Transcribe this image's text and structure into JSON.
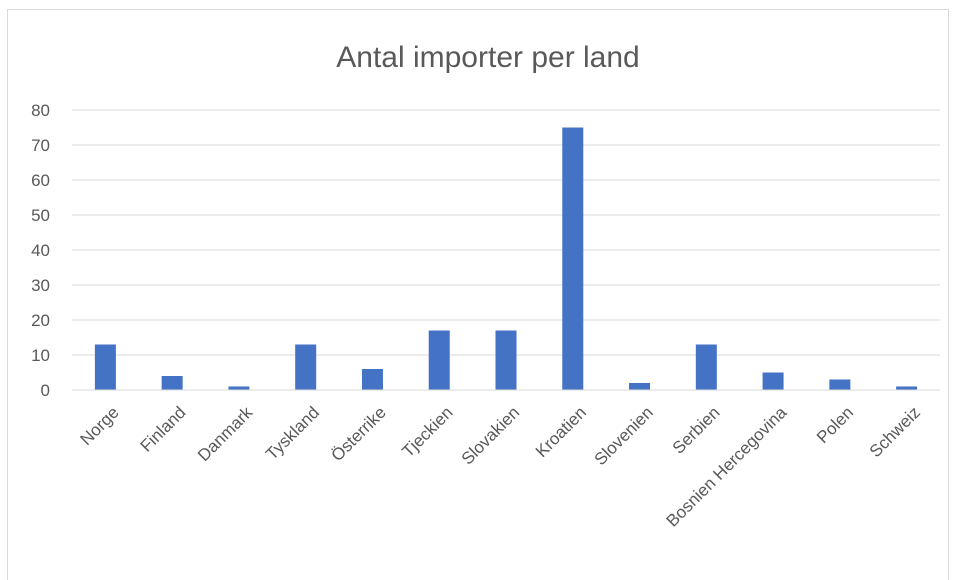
{
  "chart_data": {
    "type": "bar",
    "title": "Antal importer per land",
    "xlabel": "",
    "ylabel": "",
    "categories": [
      "Norge",
      "Finland",
      "Danmark",
      "Tyskland",
      "Österrike",
      "Tjeckien",
      "Slovakien",
      "Kroatien",
      "Slovenien",
      "Serbien",
      "Bosnien Hercegovina",
      "Polen",
      "Schweiz"
    ],
    "values": [
      13,
      4,
      1,
      13,
      6,
      17,
      17,
      75,
      2,
      13,
      5,
      3,
      1
    ],
    "ylim": [
      0,
      80
    ],
    "yticks": [
      "0",
      "10",
      "20",
      "30",
      "40",
      "50",
      "60",
      "70",
      "80"
    ],
    "grid": true,
    "legend": "none",
    "colors": {
      "bar": "#4472C4",
      "grid": "#D9D9D9",
      "text": "#595959",
      "frame": "#D9D9D9"
    }
  }
}
